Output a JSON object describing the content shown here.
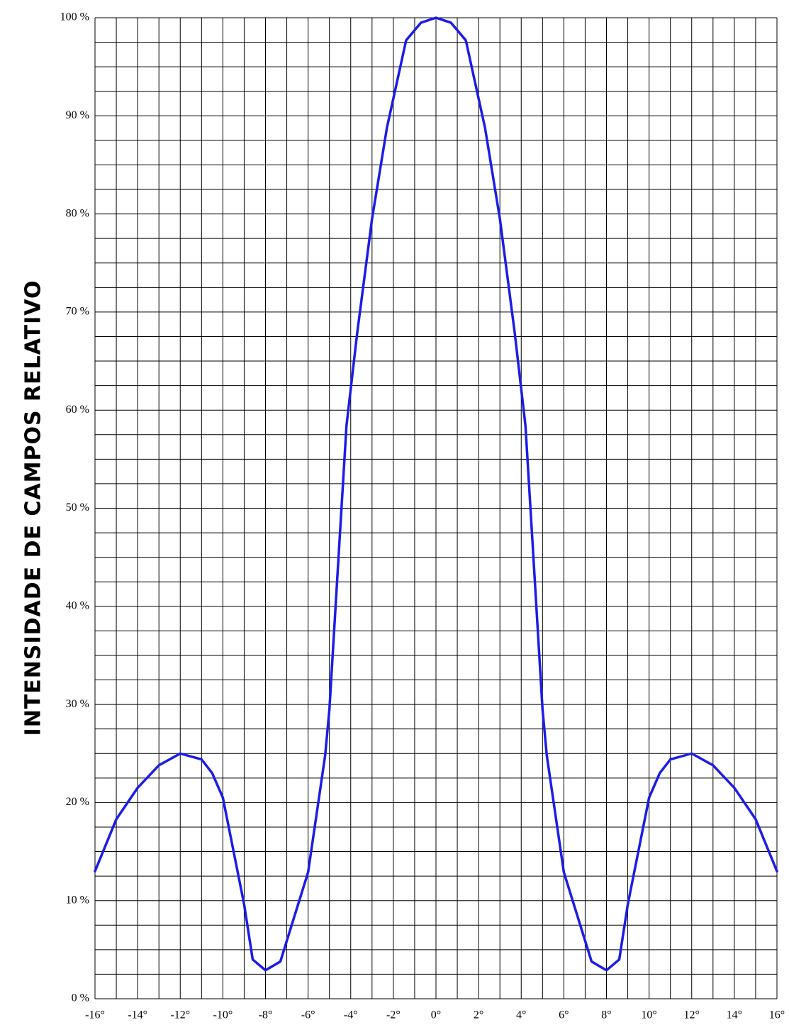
{
  "chart_data": {
    "type": "line",
    "y_label": "INTENSIDADE DE CAMPOS RELATIVO",
    "x": [
      -16,
      -15,
      -14,
      -13,
      -12,
      -11,
      -10.5,
      -10,
      -9,
      -8.6,
      -8,
      -7.3,
      -6,
      -5.2,
      -5,
      -4.6,
      -4.2,
      -3.7,
      -3,
      -2.3,
      -1.4,
      -0.7,
      0,
      0.7,
      1.4,
      2.3,
      3,
      3.7,
      4.2,
      4.6,
      5,
      5.2,
      6,
      7.3,
      8,
      8.6,
      9,
      10,
      10.5,
      11,
      12,
      13,
      14,
      15,
      16
    ],
    "values": [
      13,
      18.3,
      21.5,
      23.8,
      25,
      24.4,
      23,
      20.5,
      9.6,
      4,
      2.9,
      3.8,
      12.9,
      24.8,
      29.5,
      44,
      58.4,
      67.8,
      79.5,
      88.8,
      97.7,
      99.5,
      100,
      99.5,
      97.7,
      88.8,
      79.5,
      67.8,
      58.4,
      44,
      29.5,
      24.8,
      12.9,
      3.8,
      2.9,
      4,
      9.6,
      20.5,
      23,
      24.4,
      25,
      23.8,
      21.5,
      18.3,
      13
    ],
    "color": "#1c1ce8",
    "xlim": [
      -16,
      16
    ],
    "ylim": [
      0,
      100
    ],
    "xticks": [
      {
        "value": -16,
        "label": "-16°"
      },
      {
        "value": -14,
        "label": "-14°"
      },
      {
        "value": -12,
        "label": "-12°"
      },
      {
        "value": -10,
        "label": "-10°"
      },
      {
        "value": -8,
        "label": "-8°"
      },
      {
        "value": -6,
        "label": "-6°"
      },
      {
        "value": -4,
        "label": "-4°"
      },
      {
        "value": -2,
        "label": "-2°"
      },
      {
        "value": 0,
        "label": "0°"
      },
      {
        "value": 2,
        "label": "2°"
      },
      {
        "value": 4,
        "label": "4°"
      },
      {
        "value": 6,
        "label": "6°"
      },
      {
        "value": 8,
        "label": "8°"
      },
      {
        "value": 10,
        "label": "10°"
      },
      {
        "value": 12,
        "label": "12°"
      },
      {
        "value": 14,
        "label": "14°"
      },
      {
        "value": 16,
        "label": "16°"
      }
    ],
    "yticks": [
      {
        "value": 0,
        "label": "0 %"
      },
      {
        "value": 10,
        "label": "10 %"
      },
      {
        "value": 20,
        "label": "20 %"
      },
      {
        "value": 30,
        "label": "30 %"
      },
      {
        "value": 40,
        "label": "40 %"
      },
      {
        "value": 50,
        "label": "50 %"
      },
      {
        "value": 60,
        "label": "60 %"
      },
      {
        "value": 70,
        "label": "70 %"
      },
      {
        "value": 80,
        "label": "80 %"
      },
      {
        "value": 90,
        "label": "90 %"
      },
      {
        "value": 100,
        "label": "100 %"
      }
    ],
    "minor_xticks": [
      -15,
      -13,
      -11,
      -9,
      -7,
      -5,
      -3,
      -1,
      1,
      3,
      5,
      7,
      9,
      11,
      13,
      15
    ],
    "minor_yticks": [
      2.5,
      5,
      7.5,
      12.5,
      15,
      17.5,
      22.5,
      25,
      27.5,
      32.5,
      35,
      37.5,
      42.5,
      45,
      47.5,
      52.5,
      55,
      57.5,
      62.5,
      65,
      67.5,
      72.5,
      75,
      77.5,
      82.5,
      85,
      87.5,
      92.5,
      95,
      97.5
    ],
    "grid": true
  }
}
